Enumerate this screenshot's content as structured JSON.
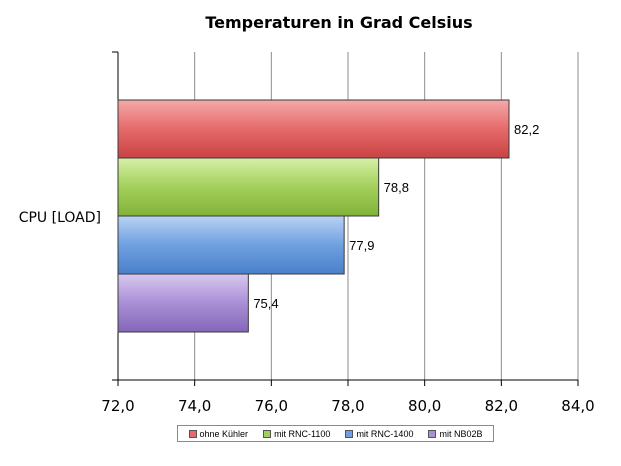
{
  "chart_data": {
    "type": "bar",
    "orientation": "horizontal",
    "title": "Temperaturen in Grad Celsius",
    "categories": [
      "CPU [LOAD]"
    ],
    "series": [
      {
        "name": "ohne Kühler",
        "values": [
          82.2
        ],
        "label": "82,2",
        "color": "#e56a6a"
      },
      {
        "name": "mit RNC-1100",
        "values": [
          78.8
        ],
        "label": "78,8",
        "color": "#a3d05a"
      },
      {
        "name": "mit RNC-1400",
        "values": [
          77.9
        ],
        "label": "77,9",
        "color": "#6fa0e0"
      },
      {
        "name": "mit NB02B",
        "values": [
          75.4
        ],
        "label": "75,4",
        "color": "#a98fd6"
      }
    ],
    "xlim": [
      72,
      84
    ],
    "xticks": [
      72,
      74,
      76,
      78,
      80,
      82,
      84
    ],
    "xtick_labels": [
      "72,0",
      "74,0",
      "76,0",
      "78,0",
      "80,0",
      "82,0",
      "84,0"
    ],
    "grid": "vertical",
    "legend_position": "bottom"
  }
}
